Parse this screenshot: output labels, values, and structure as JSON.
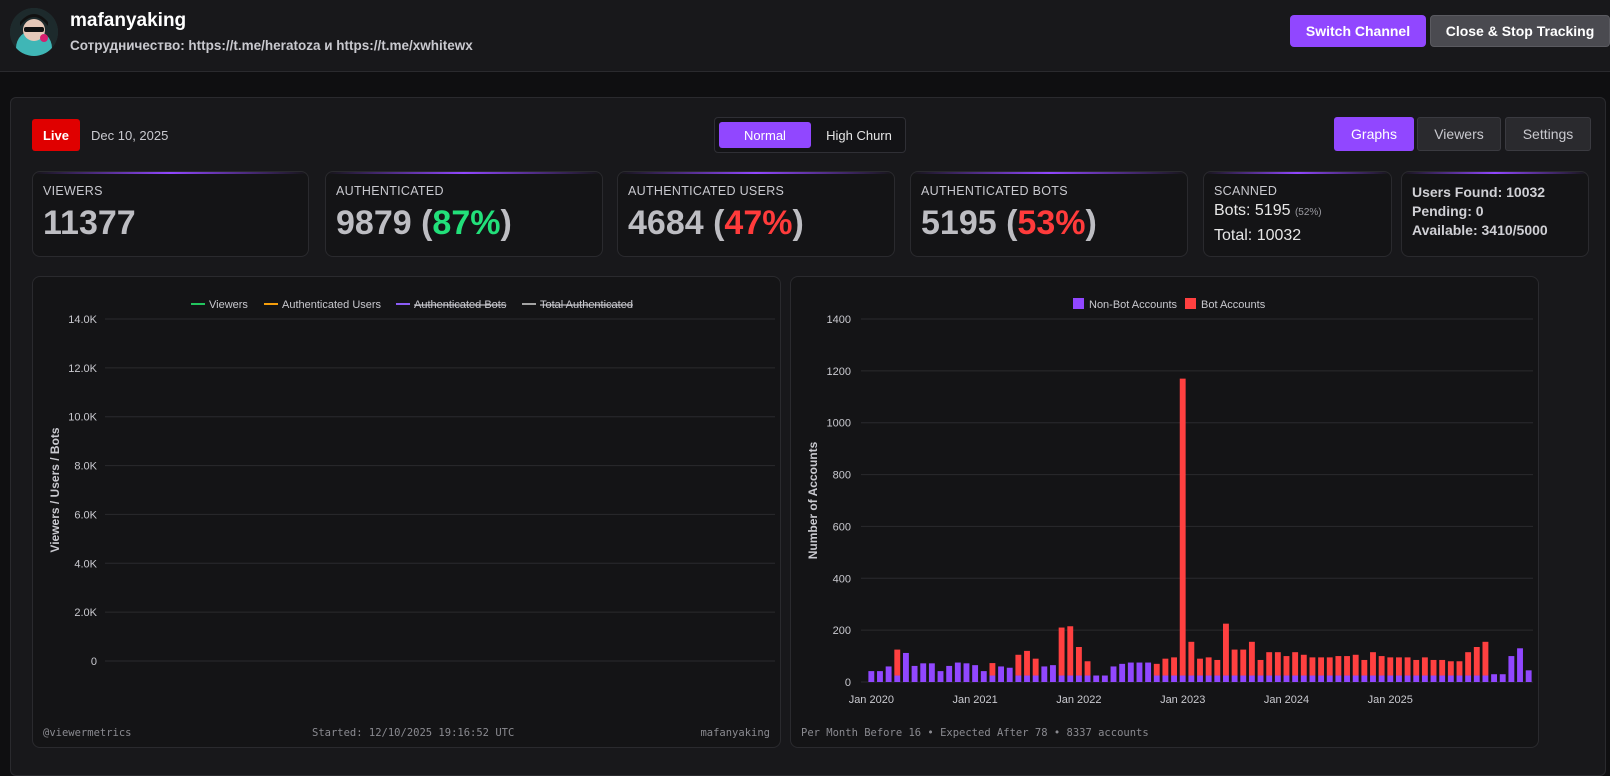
{
  "header": {
    "channel_name": "mafanyaking",
    "description": "Сотрудничество: https://t.me/heratoza и https://t.me/xwhitewx",
    "switch_label": "Switch Channel",
    "close_label": "Close & Stop Tracking"
  },
  "toolbar": {
    "live_label": "Live",
    "date": "Dec 10, 2025",
    "mode_normal": "Normal",
    "mode_high_churn": "High Churn",
    "tab_graphs": "Graphs",
    "tab_viewers": "Viewers",
    "tab_settings": "Settings"
  },
  "stats": {
    "viewers_label": "VIEWERS",
    "viewers_value": "11377",
    "authenticated_label": "AUTHENTICATED",
    "authenticated_value": "9879",
    "authenticated_pct": "87%",
    "auth_users_label": "AUTHENTICATED USERS",
    "auth_users_value": "4684",
    "auth_users_pct": "47%",
    "auth_bots_label": "AUTHENTICATED BOTS",
    "auth_bots_value": "5195",
    "auth_bots_pct": "53%",
    "scanned_label": "SCANNED",
    "scanned_bots_text": "Bots: 5195",
    "scanned_bots_pct": "(52%)",
    "scanned_total_text": "Total: 10032",
    "users_found": "Users Found: 10032",
    "pending": "Pending: 0",
    "available": "Available: 3410/5000"
  },
  "colors": {
    "accent": "#9147ff",
    "live": "#e00000",
    "viewers_line": "#22c55e",
    "auth_users_line": "#f59e0b",
    "auth_bots_line": "#8b5cf6",
    "total_auth_line": "#a3a3a3",
    "non_bot": "#9147ff",
    "bot": "#ff4040"
  },
  "chart_data": [
    {
      "type": "line",
      "title": "",
      "ylabel": "Viewers / Users / Bots",
      "ylim": [
        0,
        14000
      ],
      "yticks": [
        "0",
        "2.0K",
        "4.0K",
        "6.0K",
        "8.0K",
        "10.0K",
        "12.0K",
        "14.0K"
      ],
      "ytick_values": [
        0,
        2000,
        4000,
        6000,
        8000,
        10000,
        12000,
        14000
      ],
      "series": [
        {
          "name": "Viewers",
          "values": [],
          "hidden": false
        },
        {
          "name": "Authenticated Users",
          "values": [],
          "hidden": false
        },
        {
          "name": "Authenticated Bots",
          "values": [],
          "hidden": true
        },
        {
          "name": "Total Authenticated",
          "values": [],
          "hidden": true
        }
      ],
      "footer_left": "@viewermetrics",
      "footer_center": "Started: 12/10/2025 19:16:52 UTC",
      "footer_right": "mafanyaking"
    },
    {
      "type": "bar",
      "stacked": true,
      "ylabel": "Number of Accounts",
      "ylim": [
        0,
        1400
      ],
      "yticks": [
        "0",
        "200",
        "400",
        "600",
        "800",
        "1000",
        "1200",
        "1400"
      ],
      "ytick_values": [
        0,
        200,
        400,
        600,
        800,
        1000,
        1200,
        1400
      ],
      "xtick_labels": [
        "Jan 2020",
        "Jan 2021",
        "Jan 2022",
        "Jan 2023",
        "Jan 2024",
        "Jan 2025"
      ],
      "xtick_indices": [
        0,
        12,
        24,
        36,
        48,
        60
      ],
      "series": [
        {
          "name": "Non-Bot Accounts",
          "values": [
            42,
            42,
            60,
            25,
            112,
            62,
            72,
            72,
            42,
            62,
            75,
            72,
            65,
            42,
            25,
            60,
            55,
            25,
            25,
            25,
            60,
            65,
            25,
            25,
            25,
            25,
            25,
            25,
            60,
            70,
            75,
            75,
            75,
            25,
            25,
            25,
            25,
            25,
            25,
            25,
            25,
            25,
            25,
            25,
            25,
            25,
            25,
            25,
            25,
            25,
            25,
            25,
            25,
            25,
            25,
            25,
            25,
            25,
            25,
            25,
            25,
            25,
            25,
            25,
            25,
            25,
            25,
            25,
            25,
            25,
            25,
            25,
            30,
            30,
            100,
            130,
            45
          ]
        },
        {
          "name": "Bot Accounts",
          "values": [
            0,
            0,
            0,
            100,
            0,
            0,
            0,
            0,
            0,
            0,
            0,
            0,
            0,
            0,
            48,
            0,
            0,
            80,
            95,
            65,
            0,
            0,
            185,
            190,
            110,
            55,
            0,
            0,
            0,
            0,
            0,
            0,
            0,
            45,
            65,
            70,
            1145,
            130,
            65,
            70,
            60,
            200,
            100,
            100,
            130,
            60,
            90,
            90,
            75,
            90,
            80,
            70,
            70,
            70,
            75,
            75,
            80,
            60,
            90,
            75,
            70,
            70,
            70,
            60,
            70,
            60,
            60,
            55,
            55,
            90,
            110,
            130,
            0,
            0,
            0,
            0,
            0
          ]
        }
      ],
      "footer": "Per Month Before 16 • Expected After 78 • 8337 accounts"
    }
  ]
}
